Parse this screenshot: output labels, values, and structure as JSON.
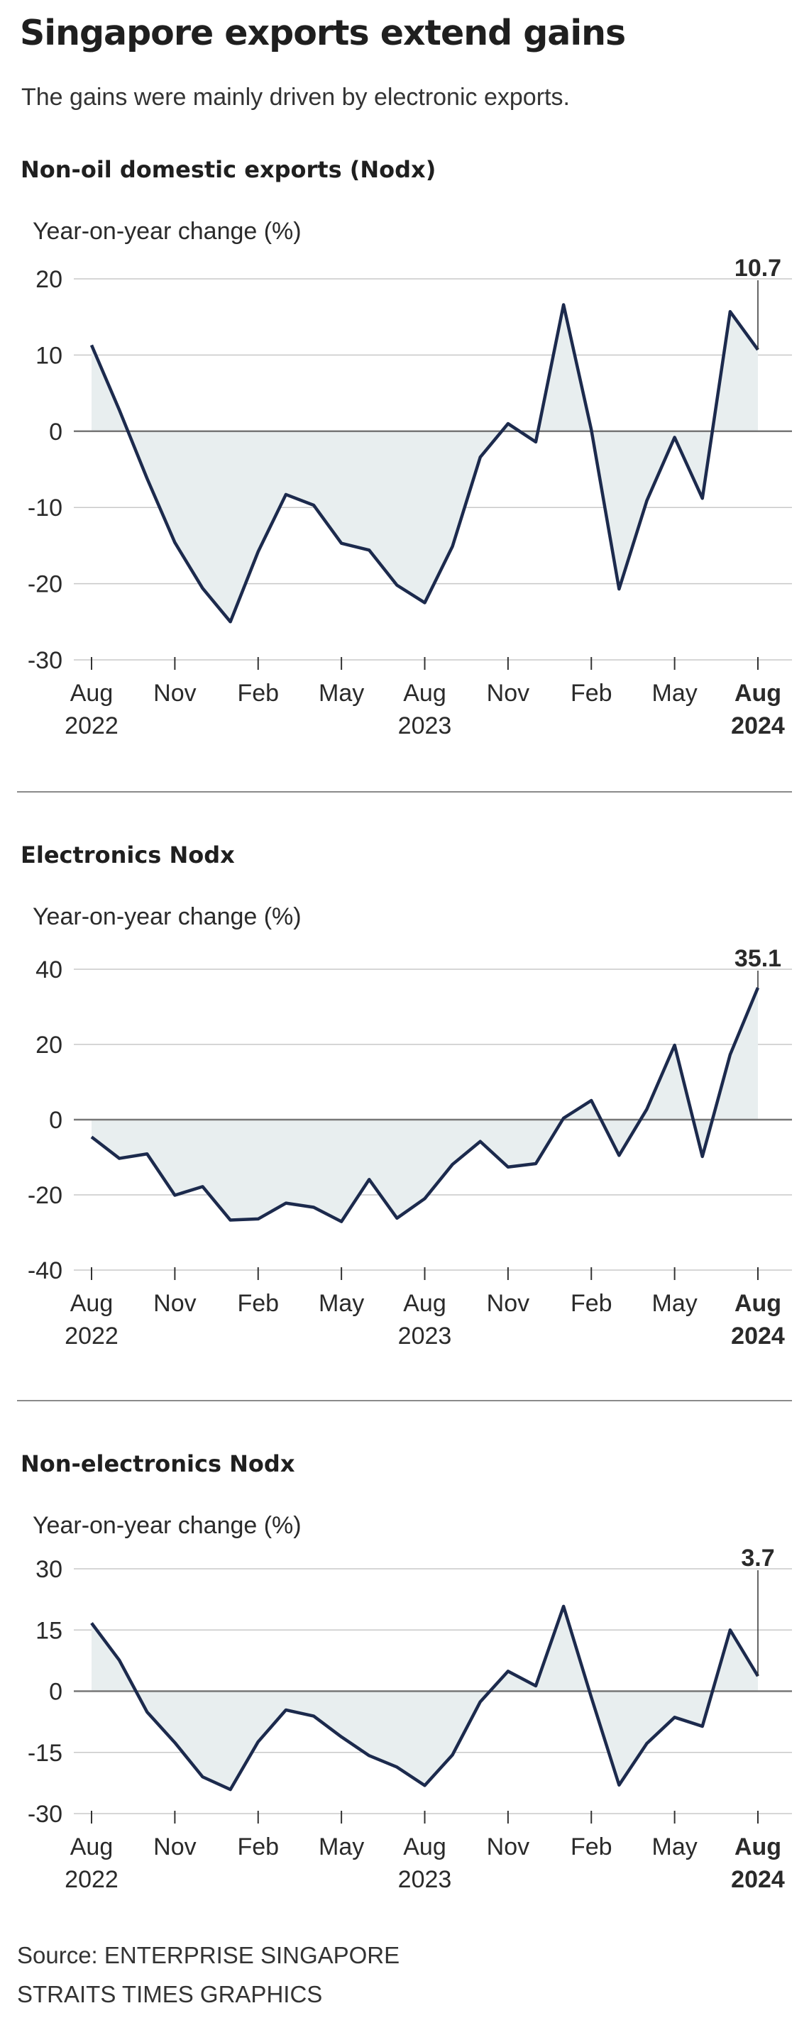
{
  "header": {
    "title": "Singapore exports extend gains",
    "subtitle": "The gains were mainly driven by electronic exports."
  },
  "footer": {
    "source": "Source: ENTERPRISE SINGAPORE",
    "credit": "STRAITS TIMES GRAPHICS"
  },
  "colors": {
    "line": "#1c2a4d",
    "fill": "#e8eeef",
    "grid": "#c8c8c8",
    "zero": "#777777"
  },
  "chart_data": [
    {
      "type": "area",
      "title": "Non-oil domestic exports (Nodx)",
      "ylabel": "Year-on-year change (%)",
      "x": [
        "Aug 2022",
        "Sep 2022",
        "Oct 2022",
        "Nov 2022",
        "Dec 2022",
        "Jan 2023",
        "Feb 2023",
        "Mar 2023",
        "Apr 2023",
        "May 2023",
        "Jun 2023",
        "Jul 2023",
        "Aug 2023",
        "Sep 2023",
        "Oct 2023",
        "Nov 2023",
        "Dec 2023",
        "Jan 2024",
        "Feb 2024",
        "Mar 2024",
        "Apr 2024",
        "May 2024",
        "Jun 2024",
        "Jul 2024",
        "Aug 2024"
      ],
      "values": [
        11.3,
        2.8,
        -6.2,
        -14.6,
        -20.6,
        -25.0,
        -15.8,
        -8.3,
        -9.7,
        -14.7,
        -15.6,
        -20.2,
        -22.5,
        -15.1,
        -3.4,
        1.0,
        -1.4,
        16.6,
        0.2,
        -20.7,
        -9.1,
        -0.8,
        -8.8,
        15.7,
        10.7
      ],
      "ylim": [
        -30,
        20
      ],
      "yticks": [
        "20",
        "10",
        "0",
        "-10",
        "-20",
        "-30"
      ],
      "ytick_values": [
        20,
        10,
        0,
        -10,
        -20,
        -30
      ],
      "xticks": [
        "Aug",
        "Nov",
        "Feb",
        "May",
        "Aug",
        "Nov",
        "Feb",
        "May",
        "Aug"
      ],
      "xtick_years": [
        "2022",
        "",
        "",
        "",
        "2023",
        "",
        "",
        "",
        "2024"
      ],
      "latest_label": "10.7"
    },
    {
      "type": "area",
      "title": "Electronics Nodx",
      "ylabel": "Year-on-year change (%)",
      "x": [
        "Aug 2022",
        "Sep 2022",
        "Oct 2022",
        "Nov 2022",
        "Dec 2022",
        "Jan 2023",
        "Feb 2023",
        "Mar 2023",
        "Apr 2023",
        "May 2023",
        "Jun 2023",
        "Jul 2023",
        "Aug 2023",
        "Sep 2023",
        "Oct 2023",
        "Nov 2023",
        "Dec 2023",
        "Jan 2024",
        "Feb 2024",
        "Mar 2024",
        "Apr 2024",
        "May 2024",
        "Jun 2024",
        "Jul 2024",
        "Aug 2024"
      ],
      "values": [
        -4.6,
        -10.3,
        -9.1,
        -20.1,
        -17.8,
        -26.7,
        -26.4,
        -22.2,
        -23.3,
        -27.1,
        -15.9,
        -26.2,
        -21.0,
        -11.9,
        -5.8,
        -12.6,
        -11.7,
        0.4,
        5.1,
        -9.5,
        2.8,
        19.8,
        -9.8,
        17.3,
        35.1
      ],
      "ylim": [
        -40,
        40
      ],
      "yticks": [
        "40",
        "20",
        "0",
        "-20",
        "-40"
      ],
      "ytick_values": [
        40,
        20,
        0,
        -20,
        -40
      ],
      "xticks": [
        "Aug",
        "Nov",
        "Feb",
        "May",
        "Aug",
        "Nov",
        "Feb",
        "May",
        "Aug"
      ],
      "xtick_years": [
        "2022",
        "",
        "",
        "",
        "2023",
        "",
        "",
        "",
        "2024"
      ],
      "latest_label": "35.1"
    },
    {
      "type": "area",
      "title": "Non-electronics Nodx",
      "ylabel": "Year-on-year change (%)",
      "x": [
        "Aug 2022",
        "Sep 2022",
        "Oct 2022",
        "Nov 2022",
        "Dec 2022",
        "Jan 2023",
        "Feb 2023",
        "Mar 2023",
        "Apr 2023",
        "May 2023",
        "Jun 2023",
        "Jul 2023",
        "Aug 2023",
        "Sep 2023",
        "Oct 2023",
        "Nov 2023",
        "Dec 2023",
        "Jan 2024",
        "Feb 2024",
        "Mar 2024",
        "Apr 2024",
        "May 2024",
        "Jun 2024",
        "Jul 2024",
        "Aug 2024"
      ],
      "values": [
        16.7,
        7.6,
        -5.1,
        -12.6,
        -21.0,
        -24.1,
        -12.4,
        -4.6,
        -6.1,
        -11.2,
        -15.8,
        -18.6,
        -23.1,
        -15.6,
        -2.6,
        4.9,
        1.3,
        20.8,
        -1.5,
        -23.0,
        -12.8,
        -6.4,
        -8.6,
        15.0,
        3.7
      ],
      "ylim": [
        -30,
        30
      ],
      "yticks": [
        "30",
        "15",
        "0",
        "-15",
        "-30"
      ],
      "ytick_values": [
        30,
        15,
        0,
        -15,
        -30
      ],
      "xticks": [
        "Aug",
        "Nov",
        "Feb",
        "May",
        "Aug",
        "Nov",
        "Feb",
        "May",
        "Aug"
      ],
      "xtick_years": [
        "2022",
        "",
        "",
        "",
        "2023",
        "",
        "",
        "",
        "2024"
      ],
      "latest_label": "3.7"
    }
  ]
}
